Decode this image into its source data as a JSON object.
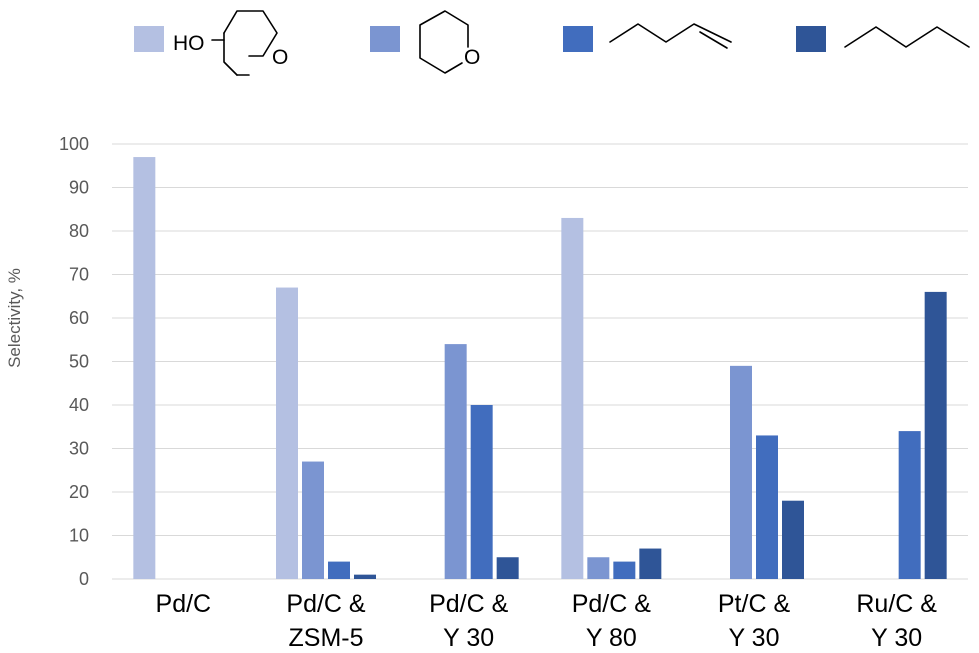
{
  "chart_data": {
    "type": "bar",
    "categories": [
      [
        "Pd/C"
      ],
      [
        "Pd/C &",
        "ZSM-5"
      ],
      [
        "Pd/C &",
        "Y 30"
      ],
      [
        "Pd/C &",
        "Y 80"
      ],
      [
        "Pt/C &",
        "Y 30"
      ],
      [
        "Ru/C &",
        "Y 30"
      ]
    ],
    "series": [
      {
        "color": "#b4c0e2",
        "legend_icon": "hydroxy-tetrahydropyran-structure-icon",
        "values": [
          97,
          67,
          0,
          83,
          0,
          0
        ]
      },
      {
        "color": "#7b95d1",
        "legend_icon": "tetrahydropyran-structure-icon",
        "values": [
          0,
          27,
          54,
          5,
          49,
          0
        ]
      },
      {
        "color": "#416dbe",
        "legend_icon": "1-pentene-structure-icon",
        "values": [
          0,
          4,
          40,
          4,
          33,
          34
        ]
      },
      {
        "color": "#2f5597",
        "legend_icon": "pentane-structure-icon",
        "values": [
          0,
          1,
          5,
          7,
          18,
          66
        ]
      }
    ],
    "ylabel": "Selectivity, %",
    "ylim": [
      0,
      100
    ],
    "yticks": [
      0,
      10,
      20,
      30,
      40,
      50,
      60,
      70,
      80,
      90,
      100
    ],
    "grid": true,
    "legend_position": "top",
    "legend_text": {
      "ho_label": "HO",
      "ring_oxygen_label": "O"
    }
  }
}
